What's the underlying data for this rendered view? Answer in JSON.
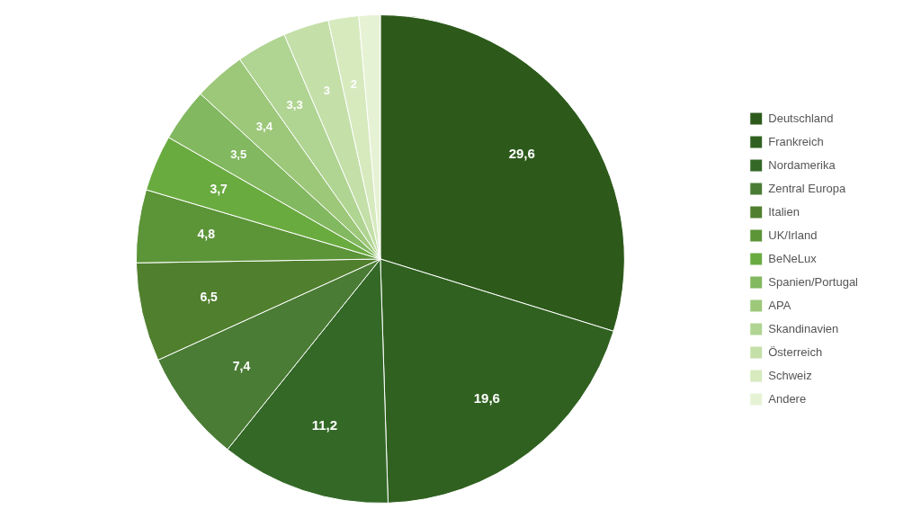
{
  "chart_data": {
    "type": "pie",
    "categories": [
      "Deutschland",
      "Frankreich",
      "Nordamerika",
      "Zentral Europa",
      "Italien",
      "UK/Irland",
      "BeNeLux",
      "Spanien/Portugal",
      "APA",
      "Skandinavien",
      "Österreich",
      "Schweiz",
      "Andere"
    ],
    "values": [
      29.6,
      19.6,
      11.2,
      7.4,
      6.5,
      4.8,
      3.7,
      3.5,
      3.4,
      3.3,
      3.0,
      2.0,
      1.4
    ],
    "colors": [
      "#2d5a1b",
      "#306120",
      "#336827",
      "#4a7c35",
      "#507f2e",
      "#5c9438",
      "#6aab40",
      "#82b860",
      "#9dc87a",
      "#b0d492",
      "#c4dfa8",
      "#d6eabe",
      "#e6f2d4"
    ],
    "data_labels": true,
    "value_labels": [
      "29,6",
      "19,6",
      "11,2",
      "7,4",
      "6,5",
      "4,8",
      "3,7",
      "3,5",
      "3,4",
      "3,3",
      "3",
      "2",
      null
    ],
    "legend": "right"
  }
}
